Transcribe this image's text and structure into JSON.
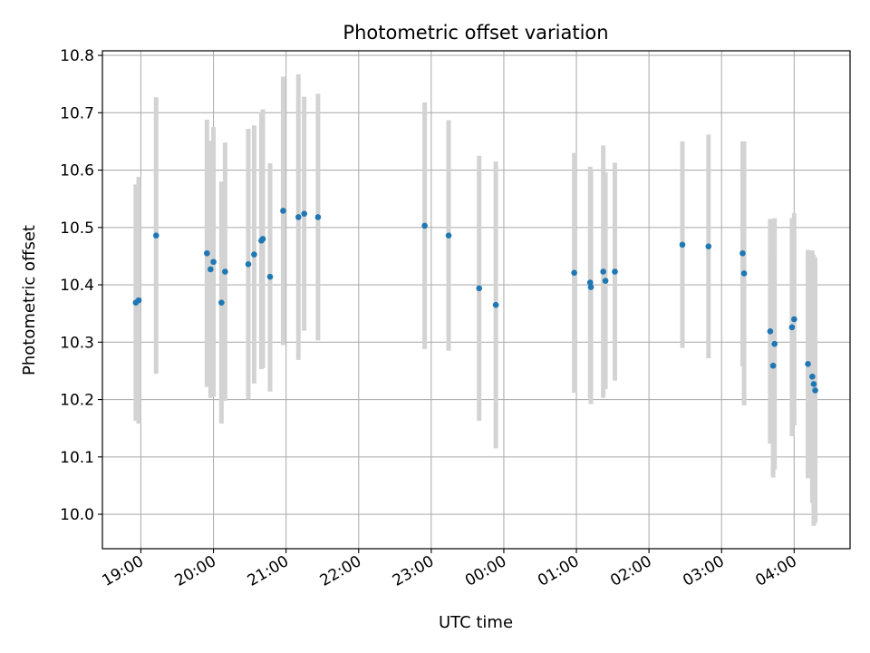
{
  "chart_data": {
    "type": "scatter",
    "title": "Photometric offset variation",
    "xlabel": "UTC time",
    "ylabel": "Photometric offset",
    "x_unit": "hours (UTC), continuing past midnight",
    "xlim": [
      18.47,
      28.77
    ],
    "ylim": [
      9.94,
      10.808
    ],
    "grid": true,
    "legend": "none",
    "x_ticks": [
      {
        "value": 19,
        "label": "19:00"
      },
      {
        "value": 20,
        "label": "20:00"
      },
      {
        "value": 21,
        "label": "21:00"
      },
      {
        "value": 22,
        "label": "22:00"
      },
      {
        "value": 23,
        "label": "23:00"
      },
      {
        "value": 24,
        "label": "00:00"
      },
      {
        "value": 25,
        "label": "01:00"
      },
      {
        "value": 26,
        "label": "02:00"
      },
      {
        "value": 27,
        "label": "03:00"
      },
      {
        "value": 28,
        "label": "04:00"
      }
    ],
    "y_ticks": [
      {
        "value": 10.0,
        "label": "10.0"
      },
      {
        "value": 10.1,
        "label": "10.1"
      },
      {
        "value": 10.2,
        "label": "10.2"
      },
      {
        "value": 10.3,
        "label": "10.3"
      },
      {
        "value": 10.4,
        "label": "10.4"
      },
      {
        "value": 10.5,
        "label": "10.5"
      },
      {
        "value": 10.6,
        "label": "10.6"
      },
      {
        "value": 10.7,
        "label": "10.7"
      },
      {
        "value": 10.8,
        "label": "10.8"
      }
    ],
    "colors": {
      "point": "#1f77b4",
      "errorbar": "#d3d3d3",
      "grid": "#b0b0b0",
      "axes": "#000000"
    },
    "points": [
      {
        "x": 18.93,
        "y": 10.369,
        "lo": 10.163,
        "hi": 10.575
      },
      {
        "x": 18.97,
        "y": 10.373,
        "lo": 10.158,
        "hi": 10.588
      },
      {
        "x": 19.21,
        "y": 10.486,
        "lo": 10.245,
        "hi": 10.727
      },
      {
        "x": 19.91,
        "y": 10.455,
        "lo": 10.222,
        "hi": 10.688
      },
      {
        "x": 19.96,
        "y": 10.427,
        "lo": 10.203,
        "hi": 10.651
      },
      {
        "x": 20.0,
        "y": 10.44,
        "lo": 10.205,
        "hi": 10.675
      },
      {
        "x": 20.11,
        "y": 10.369,
        "lo": 10.158,
        "hi": 10.58
      },
      {
        "x": 20.16,
        "y": 10.423,
        "lo": 10.198,
        "hi": 10.648
      },
      {
        "x": 20.48,
        "y": 10.436,
        "lo": 10.2,
        "hi": 10.672
      },
      {
        "x": 20.56,
        "y": 10.453,
        "lo": 10.228,
        "hi": 10.678
      },
      {
        "x": 20.66,
        "y": 10.477,
        "lo": 10.253,
        "hi": 10.701
      },
      {
        "x": 20.68,
        "y": 10.48,
        "lo": 10.255,
        "hi": 10.706
      },
      {
        "x": 20.78,
        "y": 10.414,
        "lo": 10.214,
        "hi": 10.612
      },
      {
        "x": 20.96,
        "y": 10.529,
        "lo": 10.295,
        "hi": 10.763
      },
      {
        "x": 21.17,
        "y": 10.518,
        "lo": 10.269,
        "hi": 10.767
      },
      {
        "x": 21.25,
        "y": 10.524,
        "lo": 10.32,
        "hi": 10.728
      },
      {
        "x": 21.44,
        "y": 10.518,
        "lo": 10.303,
        "hi": 10.733
      },
      {
        "x": 22.91,
        "y": 10.503,
        "lo": 10.288,
        "hi": 10.718
      },
      {
        "x": 23.24,
        "y": 10.486,
        "lo": 10.285,
        "hi": 10.687
      },
      {
        "x": 23.66,
        "y": 10.394,
        "lo": 10.163,
        "hi": 10.625
      },
      {
        "x": 23.89,
        "y": 10.365,
        "lo": 10.115,
        "hi": 10.615
      },
      {
        "x": 24.97,
        "y": 10.421,
        "lo": 10.212,
        "hi": 10.63
      },
      {
        "x": 25.19,
        "y": 10.404,
        "lo": 10.202,
        "hi": 10.606
      },
      {
        "x": 25.2,
        "y": 10.396,
        "lo": 10.192,
        "hi": 10.6
      },
      {
        "x": 25.37,
        "y": 10.423,
        "lo": 10.203,
        "hi": 10.643
      },
      {
        "x": 25.4,
        "y": 10.407,
        "lo": 10.218,
        "hi": 10.596
      },
      {
        "x": 25.53,
        "y": 10.423,
        "lo": 10.233,
        "hi": 10.613
      },
      {
        "x": 26.46,
        "y": 10.47,
        "lo": 10.29,
        "hi": 10.65
      },
      {
        "x": 26.82,
        "y": 10.467,
        "lo": 10.272,
        "hi": 10.662
      },
      {
        "x": 27.29,
        "y": 10.455,
        "lo": 10.258,
        "hi": 10.65
      },
      {
        "x": 27.31,
        "y": 10.42,
        "lo": 10.19,
        "hi": 10.65
      },
      {
        "x": 27.67,
        "y": 10.319,
        "lo": 10.123,
        "hi": 10.515
      },
      {
        "x": 27.71,
        "y": 10.259,
        "lo": 10.064,
        "hi": 10.454
      },
      {
        "x": 27.73,
        "y": 10.297,
        "lo": 10.078,
        "hi": 10.516
      },
      {
        "x": 27.97,
        "y": 10.326,
        "lo": 10.136,
        "hi": 10.516
      },
      {
        "x": 28.0,
        "y": 10.34,
        "lo": 10.155,
        "hi": 10.525
      },
      {
        "x": 28.19,
        "y": 10.262,
        "lo": 10.063,
        "hi": 10.461
      },
      {
        "x": 28.25,
        "y": 10.24,
        "lo": 10.02,
        "hi": 10.46
      },
      {
        "x": 28.27,
        "y": 10.227,
        "lo": 9.98,
        "hi": 10.452
      },
      {
        "x": 28.29,
        "y": 10.216,
        "lo": 9.985,
        "hi": 10.447
      }
    ]
  }
}
